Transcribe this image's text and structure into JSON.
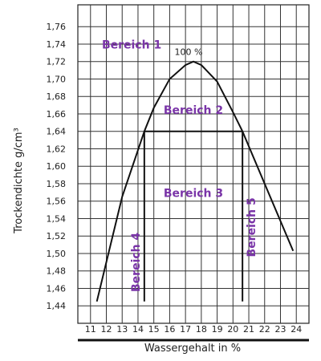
{
  "chart_data": {
    "type": "line",
    "xlabel": "Wassergehalt in %",
    "ylabel": "Trockendichte g/cm³",
    "x_ticks": [
      "11",
      "12",
      "13",
      "14",
      "15",
      "16",
      "17",
      "18",
      "19",
      "20",
      "21",
      "22",
      "23",
      "24"
    ],
    "y_ticks": [
      "1,76",
      "1,74",
      "1,72",
      "1,70",
      "1,68",
      "1,66",
      "1,64",
      "1,62",
      "1,60",
      "1,58",
      "1,56",
      "1,54",
      "1,52",
      "1,50",
      "1,48",
      "1,46",
      "1,44"
    ],
    "xlim": [
      10.2,
      24.8
    ],
    "ylim": [
      1.42,
      1.785
    ],
    "grid": true,
    "series": [
      {
        "x": [
          11.4,
          13.0,
          14.4,
          15.0,
          16.0,
          17.0,
          17.5,
          18.0,
          19.0,
          20.0,
          20.6,
          22.0,
          23.8
        ],
        "y": [
          1.445,
          1.565,
          1.64,
          1.667,
          1.7,
          1.716,
          1.72,
          1.716,
          1.697,
          1.662,
          1.64,
          1.58,
          1.503
        ]
      }
    ],
    "annotations": {
      "peak_label": "100 %",
      "peak": {
        "x": 17.5,
        "y": 1.72
      },
      "plateau": {
        "x1": 14.4,
        "x2": 20.6,
        "y": 1.64
      },
      "verticals": [
        {
          "x": 14.4,
          "y_top": 1.64,
          "y_bottom": 1.445
        },
        {
          "x": 20.6,
          "y_top": 1.64,
          "y_bottom": 1.445
        }
      ],
      "regions": [
        {
          "label": "Bereich 1",
          "x": 13.6,
          "y": 1.735
        },
        {
          "label": "Bereich 2",
          "x": 17.5,
          "y": 1.66
        },
        {
          "label": "Bereich 3",
          "x": 17.5,
          "y": 1.565
        },
        {
          "label": "Bereich 4",
          "x": 14.1,
          "y": 1.49
        },
        {
          "label": "Bereich 5",
          "x": 21.4,
          "y": 1.53
        }
      ]
    }
  }
}
